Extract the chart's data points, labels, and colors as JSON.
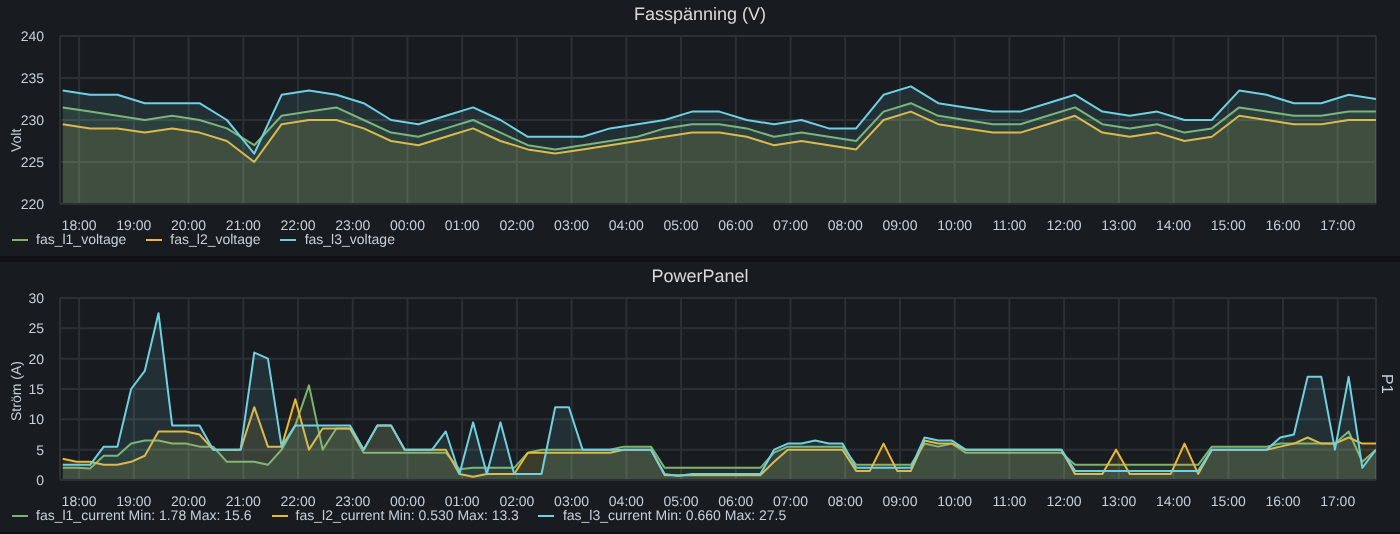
{
  "chart_data": [
    {
      "type": "area",
      "title": "Fasspänning (V)",
      "ylabel": "Volt",
      "x": [
        "--01-01T17:42",
        "--01-01T18:12",
        "--01-01T18:42",
        "--01-01T19:12",
        "--01-01T19:42",
        "--01-01T20:12",
        "--01-01T20:42",
        "--01-01T21:12",
        "--01-01T21:42",
        "--01-01T22:12",
        "--01-01T22:42",
        "--01-01T23:12",
        "--01-01T23:42",
        "--01-02T00:12",
        "--01-02T00:42",
        "--01-02T01:12",
        "--01-02T01:42",
        "--01-02T02:12",
        "--01-02T02:42",
        "--01-02T03:12",
        "--01-02T03:42",
        "--01-02T04:12",
        "--01-02T04:42",
        "--01-02T05:12",
        "--01-02T05:42",
        "--01-02T06:12",
        "--01-02T06:42",
        "--01-02T07:12",
        "--01-02T07:42",
        "--01-02T08:12",
        "--01-02T08:42",
        "--01-02T09:12",
        "--01-02T09:42",
        "--01-02T10:12",
        "--01-02T10:42",
        "--01-02T11:12",
        "--01-02T11:42",
        "--01-02T12:12",
        "--01-02T12:42",
        "--01-02T13:12",
        "--01-02T13:42",
        "--01-02T14:12",
        "--01-02T14:42",
        "--01-02T15:12",
        "--01-02T15:42",
        "--01-02T16:12",
        "--01-02T16:42",
        "--01-02T17:12",
        "--01-02T17:42"
      ],
      "series": [
        {
          "name": "fas_l1_voltage",
          "color": "#7eb26d",
          "values": [
            231.5,
            231,
            230.5,
            230,
            230.5,
            230,
            229,
            227,
            230.5,
            231,
            231.5,
            230,
            228.5,
            228,
            229,
            230,
            228.5,
            227,
            226.5,
            227,
            227.5,
            228,
            229,
            229.5,
            229.5,
            229,
            228,
            228.5,
            228,
            227.5,
            231,
            232,
            230.5,
            230,
            229.5,
            229.5,
            230.5,
            231.5,
            229.5,
            229,
            229.5,
            228.5,
            229,
            231.5,
            231,
            230.5,
            230.5,
            231,
            231
          ]
        },
        {
          "name": "fas_l2_voltage",
          "color": "#eab839",
          "values": [
            229.5,
            229,
            229,
            228.5,
            229,
            228.5,
            227.5,
            225,
            229.5,
            230,
            230,
            229,
            227.5,
            227,
            228,
            229,
            227.5,
            226.5,
            226,
            226.5,
            227,
            227.5,
            228,
            228.5,
            228.5,
            228,
            227,
            227.5,
            227,
            226.5,
            230,
            231,
            229.5,
            229,
            228.5,
            228.5,
            229.5,
            230.5,
            228.5,
            228,
            228.5,
            227.5,
            228,
            230.5,
            230,
            229.5,
            229.5,
            230,
            230
          ]
        },
        {
          "name": "fas_l3_voltage",
          "color": "#6ed0e0",
          "values": [
            233.5,
            233,
            233,
            232,
            232,
            232,
            230,
            226,
            233,
            233.5,
            233,
            232,
            230,
            229.5,
            230.5,
            231.5,
            230,
            228,
            228,
            228,
            229,
            229.5,
            230,
            231,
            231,
            230,
            229.5,
            230,
            229,
            229,
            233,
            234,
            232,
            231.5,
            231,
            231,
            232,
            233,
            231,
            230.5,
            231,
            230,
            230,
            233.5,
            233,
            232,
            232,
            233,
            232.5
          ]
        }
      ],
      "xlim": [
        "--01-01T17:39",
        "--01-02T17:42"
      ],
      "xticks": [
        {
          "value": "--01-01T18:00",
          "label": "18:00"
        },
        {
          "value": "--01-01T19:00",
          "label": "19:00"
        },
        {
          "value": "--01-01T20:00",
          "label": "20:00"
        },
        {
          "value": "--01-01T21:00",
          "label": "21:00"
        },
        {
          "value": "--01-01T22:00",
          "label": "22:00"
        },
        {
          "value": "--01-01T23:00",
          "label": "23:00"
        },
        {
          "value": "--01-02T00:00",
          "label": "00:00"
        },
        {
          "value": "--01-02T01:00",
          "label": "01:00"
        },
        {
          "value": "--01-02T02:00",
          "label": "02:00"
        },
        {
          "value": "--01-02T03:00",
          "label": "03:00"
        },
        {
          "value": "--01-02T04:00",
          "label": "04:00"
        },
        {
          "value": "--01-02T05:00",
          "label": "05:00"
        },
        {
          "value": "--01-02T06:00",
          "label": "06:00"
        },
        {
          "value": "--01-02T07:00",
          "label": "07:00"
        },
        {
          "value": "--01-02T08:00",
          "label": "08:00"
        },
        {
          "value": "--01-02T09:00",
          "label": "09:00"
        },
        {
          "value": "--01-02T10:00",
          "label": "10:00"
        },
        {
          "value": "--01-02T11:00",
          "label": "11:00"
        },
        {
          "value": "--01-02T12:00",
          "label": "12:00"
        },
        {
          "value": "--01-02T13:00",
          "label": "13:00"
        },
        {
          "value": "--01-02T14:00",
          "label": "14:00"
        },
        {
          "value": "--01-02T15:00",
          "label": "15:00"
        },
        {
          "value": "--01-02T16:00",
          "label": "16:00"
        },
        {
          "value": "--01-02T17:00",
          "label": "17:00"
        }
      ],
      "ylim": [
        220,
        240
      ],
      "yticks": [
        220,
        225,
        230,
        235,
        240
      ],
      "grid": true,
      "legend": "bottom left",
      "marker": "none",
      "line_style": "solid"
    },
    {
      "type": "area",
      "title": "PowerPanel",
      "ylabel": "Ström (A)",
      "y2label": "P1",
      "x": [
        "--01-01T17:42",
        "--01-01T17:57",
        "--01-01T18:12",
        "--01-01T18:27",
        "--01-01T18:42",
        "--01-01T18:57",
        "--01-01T19:12",
        "--01-01T19:27",
        "--01-01T19:42",
        "--01-01T19:57",
        "--01-01T20:12",
        "--01-01T20:27",
        "--01-01T20:42",
        "--01-01T20:57",
        "--01-01T21:12",
        "--01-01T21:27",
        "--01-01T21:42",
        "--01-01T21:57",
        "--01-01T22:12",
        "--01-01T22:27",
        "--01-01T22:42",
        "--01-01T22:57",
        "--01-01T23:12",
        "--01-01T23:27",
        "--01-01T23:42",
        "--01-01T23:57",
        "--01-02T00:12",
        "--01-02T00:27",
        "--01-02T00:42",
        "--01-02T00:57",
        "--01-02T01:12",
        "--01-02T01:27",
        "--01-02T01:42",
        "--01-02T01:57",
        "--01-02T02:12",
        "--01-02T02:27",
        "--01-02T02:42",
        "--01-02T02:57",
        "--01-02T03:12",
        "--01-02T03:27",
        "--01-02T03:42",
        "--01-02T03:57",
        "--01-02T04:12",
        "--01-02T04:27",
        "--01-02T04:42",
        "--01-02T04:57",
        "--01-02T05:12",
        "--01-02T05:27",
        "--01-02T05:42",
        "--01-02T05:57",
        "--01-02T06:12",
        "--01-02T06:27",
        "--01-02T06:42",
        "--01-02T06:57",
        "--01-02T07:12",
        "--01-02T07:27",
        "--01-02T07:42",
        "--01-02T07:57",
        "--01-02T08:12",
        "--01-02T08:27",
        "--01-02T08:42",
        "--01-02T08:57",
        "--01-02T09:12",
        "--01-02T09:27",
        "--01-02T09:42",
        "--01-02T09:57",
        "--01-02T10:12",
        "--01-02T10:27",
        "--01-02T10:42",
        "--01-02T10:57",
        "--01-02T11:12",
        "--01-02T11:27",
        "--01-02T11:42",
        "--01-02T11:57",
        "--01-02T12:12",
        "--01-02T12:27",
        "--01-02T12:42",
        "--01-02T12:57",
        "--01-02T13:12",
        "--01-02T13:27",
        "--01-02T13:42",
        "--01-02T13:57",
        "--01-02T14:12",
        "--01-02T14:27",
        "--01-02T14:42",
        "--01-02T14:57",
        "--01-02T15:12",
        "--01-02T15:27",
        "--01-02T15:42",
        "--01-02T15:57",
        "--01-02T16:12",
        "--01-02T16:27",
        "--01-02T16:42",
        "--01-02T16:57",
        "--01-02T17:12",
        "--01-02T17:27",
        "--01-02T17:42"
      ],
      "series": [
        {
          "name": "fas_l1_current  Min: 1.78  Max: 15.6",
          "color": "#7eb26d",
          "values": [
            2,
            2,
            1.9,
            4,
            4,
            6,
            6.5,
            6.5,
            6,
            6,
            5.5,
            5.5,
            3,
            3,
            3,
            2.5,
            5,
            9,
            15.6,
            5,
            8.5,
            8.5,
            4.5,
            4.5,
            4.5,
            4.5,
            4.5,
            4.5,
            4.5,
            1.78,
            2,
            2,
            2,
            2,
            4.5,
            5,
            5,
            5,
            5,
            5,
            5,
            5.5,
            5.5,
            5.5,
            2,
            2,
            2,
            2,
            2,
            2,
            2,
            2,
            4.5,
            5.5,
            5.5,
            5.5,
            5.5,
            5.5,
            2.5,
            2.5,
            2.5,
            2.5,
            2.5,
            6,
            5.5,
            6,
            4.5,
            4.5,
            4.5,
            4.5,
            4.5,
            4.5,
            4.5,
            4.5,
            2.5,
            2.5,
            2.5,
            2.5,
            2.5,
            2.5,
            2.5,
            2.5,
            2.5,
            2.5,
            5.5,
            5.5,
            5.5,
            5.5,
            5.5,
            6,
            6,
            6,
            6,
            6,
            8,
            3,
            5
          ]
        },
        {
          "name": "fas_l2_current  Min: 0.530  Max: 13.3",
          "color": "#eab839",
          "values": [
            3.5,
            3,
            3,
            2.5,
            2.5,
            3,
            4,
            8,
            8,
            8,
            7.5,
            5,
            5,
            5,
            12,
            5.5,
            5.5,
            13.3,
            5,
            8.5,
            8.5,
            8.5,
            5,
            9,
            9,
            5,
            5,
            5,
            5,
            1,
            0.53,
            1,
            1,
            1,
            4.5,
            4.5,
            4.5,
            4.5,
            4.5,
            4.5,
            4.5,
            5,
            5,
            5,
            0.8,
            0.8,
            0.8,
            0.8,
            0.8,
            0.8,
            0.8,
            0.8,
            3,
            5,
            5,
            5,
            5,
            5,
            1.5,
            1.5,
            6,
            1.5,
            1.5,
            6.5,
            6,
            6,
            5,
            5,
            5,
            5,
            5,
            5,
            5,
            5,
            1,
            1,
            1,
            5,
            1,
            1,
            1,
            1,
            6,
            1,
            5,
            5,
            5,
            5,
            5,
            5.5,
            6,
            7,
            6,
            6,
            7,
            6,
            6
          ]
        },
        {
          "name": "fas_l3_current  Min: 0.660  Max: 27.5",
          "color": "#6ed0e0",
          "values": [
            2.5,
            2.5,
            2.5,
            5.5,
            5.5,
            15,
            18,
            27.5,
            9,
            9,
            9,
            5,
            5,
            5,
            21,
            20,
            5.5,
            9,
            9,
            9,
            9,
            9,
            5,
            9,
            9,
            5,
            5,
            5,
            8,
            1,
            9.5,
            1,
            9.5,
            1,
            1,
            1,
            12,
            12,
            5,
            5,
            5,
            5,
            5,
            5,
            1,
            0.66,
            1,
            1,
            1,
            1,
            1,
            1,
            5,
            6,
            6,
            6.5,
            6,
            6,
            2,
            2,
            2,
            2,
            2,
            7,
            6.5,
            6.5,
            5,
            5,
            5,
            5,
            5,
            5,
            5,
            5,
            1.5,
            1.5,
            1.5,
            1.5,
            1.5,
            1.5,
            1.5,
            1.5,
            1.5,
            1.5,
            5,
            5,
            5,
            5,
            5,
            7,
            7.5,
            17,
            17,
            5,
            17,
            2,
            5
          ]
        }
      ],
      "xlim": [
        "--01-01T17:39",
        "--01-02T17:42"
      ],
      "xticks": [
        {
          "value": "--01-01T18:00",
          "label": "18:00"
        },
        {
          "value": "--01-01T19:00",
          "label": "19:00"
        },
        {
          "value": "--01-01T20:00",
          "label": "20:00"
        },
        {
          "value": "--01-01T21:00",
          "label": "21:00"
        },
        {
          "value": "--01-01T22:00",
          "label": "22:00"
        },
        {
          "value": "--01-01T23:00",
          "label": "23:00"
        },
        {
          "value": "--01-02T00:00",
          "label": "00:00"
        },
        {
          "value": "--01-02T01:00",
          "label": "01:00"
        },
        {
          "value": "--01-02T02:00",
          "label": "02:00"
        },
        {
          "value": "--01-02T03:00",
          "label": "03:00"
        },
        {
          "value": "--01-02T04:00",
          "label": "04:00"
        },
        {
          "value": "--01-02T05:00",
          "label": "05:00"
        },
        {
          "value": "--01-02T06:00",
          "label": "06:00"
        },
        {
          "value": "--01-02T07:00",
          "label": "07:00"
        },
        {
          "value": "--01-02T08:00",
          "label": "08:00"
        },
        {
          "value": "--01-02T09:00",
          "label": "09:00"
        },
        {
          "value": "--01-02T10:00",
          "label": "10:00"
        },
        {
          "value": "--01-02T11:00",
          "label": "11:00"
        },
        {
          "value": "--01-02T12:00",
          "label": "12:00"
        },
        {
          "value": "--01-02T13:00",
          "label": "13:00"
        },
        {
          "value": "--01-02T14:00",
          "label": "14:00"
        },
        {
          "value": "--01-02T15:00",
          "label": "15:00"
        },
        {
          "value": "--01-02T16:00",
          "label": "16:00"
        },
        {
          "value": "--01-02T17:00",
          "label": "17:00"
        }
      ],
      "ylim": [
        0,
        30
      ],
      "yticks": [
        0,
        5,
        10,
        15,
        20,
        25,
        30
      ],
      "grid": true,
      "legend": "bottom left",
      "marker": "none",
      "line_style": "solid"
    }
  ]
}
